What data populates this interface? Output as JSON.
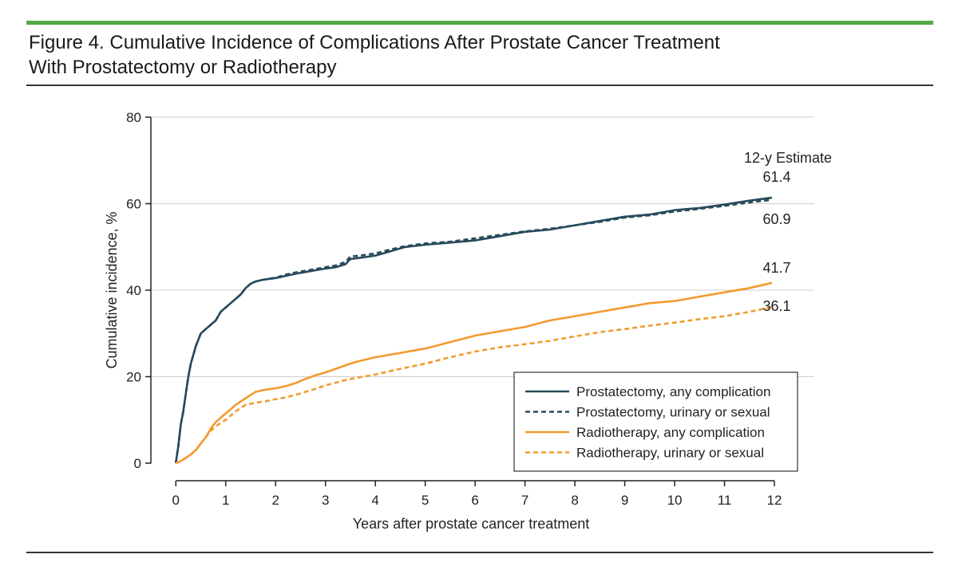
{
  "figure": {
    "title_line1": "Figure 4. Cumulative Incidence of Complications After Prostate Cancer Treatment",
    "title_line2": "With Prostatectomy or Radiotherapy"
  },
  "colors": {
    "prostatectomy": "#274a5a",
    "radiotherapy": "#f29a2e",
    "accent": "#56a845"
  },
  "chart_data": {
    "type": "line",
    "title": "Cumulative Incidence of Complications After Prostate Cancer Treatment With Prostatectomy or Radiotherapy",
    "xlabel": "Years after prostate cancer treatment",
    "ylabel": "Cumulative incidence, %",
    "xlim": [
      -0.5,
      12.8
    ],
    "ylim": [
      0,
      80
    ],
    "xticks": [
      0,
      1,
      2,
      3,
      4,
      5,
      6,
      7,
      8,
      9,
      10,
      11,
      12
    ],
    "yticks": [
      0,
      20,
      40,
      60,
      80
    ],
    "grid": "horizontal",
    "legend_position": "bottom-right",
    "estimate_header": "12-y Estimate",
    "series": [
      {
        "name": "Prostatectomy, any complication",
        "style": "solid",
        "color_key": "prostatectomy",
        "estimate": "61.4",
        "x": [
          0,
          0.05,
          0.1,
          0.15,
          0.2,
          0.25,
          0.3,
          0.35,
          0.4,
          0.5,
          0.6,
          0.7,
          0.8,
          0.9,
          1.0,
          1.1,
          1.2,
          1.3,
          1.4,
          1.5,
          1.6,
          1.7,
          1.8,
          2.0,
          2.2,
          2.4,
          2.6,
          2.8,
          3.0,
          3.2,
          3.4,
          3.5,
          3.7,
          4.0,
          4.3,
          4.6,
          5.0,
          5.5,
          6.0,
          6.5,
          7.0,
          7.5,
          8.0,
          8.5,
          9.0,
          9.5,
          10.0,
          10.5,
          11.0,
          11.5,
          11.95
        ],
        "y": [
          0,
          4,
          9,
          12,
          16,
          20,
          23,
          25,
          27,
          30,
          31,
          32,
          33,
          35,
          36,
          37,
          38,
          39,
          40.5,
          41.5,
          42,
          42.3,
          42.5,
          42.8,
          43.3,
          43.8,
          44.2,
          44.6,
          45,
          45.3,
          46,
          47.2,
          47.5,
          48,
          49,
          50,
          50.5,
          51,
          51.5,
          52.5,
          53.5,
          54,
          55,
          56,
          57,
          57.5,
          58.5,
          59,
          59.8,
          60.7,
          61.4
        ]
      },
      {
        "name": "Prostatectomy, urinary or sexual",
        "style": "dashed",
        "color_key": "prostatectomy",
        "estimate": "60.9",
        "x": [
          0,
          0.05,
          0.1,
          0.15,
          0.2,
          0.25,
          0.3,
          0.35,
          0.4,
          0.5,
          0.6,
          0.7,
          0.8,
          0.9,
          1.0,
          1.1,
          1.2,
          1.3,
          1.4,
          1.5,
          1.6,
          1.7,
          1.8,
          2.0,
          2.2,
          2.4,
          2.6,
          2.8,
          3.0,
          3.2,
          3.4,
          3.5,
          3.7,
          4.0,
          4.3,
          4.6,
          5.0,
          5.5,
          6.0,
          6.5,
          7.0,
          7.5,
          8.0,
          8.5,
          9.0,
          9.5,
          10.0,
          10.5,
          11.0,
          11.5,
          11.95
        ],
        "y": [
          0,
          4,
          9,
          12,
          16,
          20,
          23,
          25,
          27,
          30,
          31,
          32,
          33,
          35,
          36,
          37,
          38,
          39,
          40.5,
          41.5,
          42,
          42.3,
          42.5,
          42.9,
          43.6,
          44.1,
          44.5,
          44.9,
          45.3,
          45.7,
          46.5,
          47.8,
          48,
          48.5,
          49.4,
          50.2,
          50.8,
          51.2,
          52,
          52.8,
          53.6,
          54.2,
          55,
          55.8,
          56.8,
          57.3,
          58.2,
          58.8,
          59.5,
          60.3,
          60.9
        ]
      },
      {
        "name": "Radiotherapy, any complication",
        "style": "solid",
        "color_key": "radiotherapy",
        "estimate": "41.7",
        "x": [
          0,
          0.1,
          0.2,
          0.3,
          0.4,
          0.5,
          0.6,
          0.7,
          0.8,
          0.9,
          1.0,
          1.1,
          1.2,
          1.4,
          1.6,
          1.8,
          2.0,
          2.2,
          2.4,
          2.6,
          2.8,
          3.0,
          3.2,
          3.4,
          3.6,
          4.0,
          4.5,
          5.0,
          5.5,
          6.0,
          6.5,
          7.0,
          7.5,
          8.0,
          8.5,
          9.0,
          9.5,
          10.0,
          10.5,
          11.0,
          11.5,
          11.95
        ],
        "y": [
          0,
          0.5,
          1.2,
          2,
          3,
          4.5,
          6,
          8,
          9.5,
          10.5,
          11.5,
          12.5,
          13.5,
          15,
          16.5,
          17,
          17.3,
          17.8,
          18.5,
          19.5,
          20.3,
          21,
          21.8,
          22.6,
          23.4,
          24.5,
          25.5,
          26.5,
          28,
          29.5,
          30.5,
          31.5,
          33,
          34,
          35,
          36,
          37,
          37.5,
          38.5,
          39.5,
          40.5,
          41.7
        ]
      },
      {
        "name": "Radiotherapy, urinary or sexual",
        "style": "dashed",
        "color_key": "radiotherapy",
        "estimate": "36.1",
        "x": [
          0,
          0.1,
          0.2,
          0.3,
          0.4,
          0.5,
          0.6,
          0.7,
          0.8,
          0.9,
          1.0,
          1.1,
          1.2,
          1.4,
          1.6,
          1.8,
          2.0,
          2.2,
          2.4,
          2.6,
          2.8,
          3.0,
          3.2,
          3.4,
          3.6,
          4.0,
          4.5,
          5.0,
          5.5,
          6.0,
          6.5,
          7.0,
          7.5,
          8.0,
          8.5,
          9.0,
          9.5,
          10.0,
          10.5,
          11.0,
          11.5,
          11.95
        ],
        "y": [
          0,
          0.5,
          1.2,
          2,
          3,
          4.5,
          6,
          7.5,
          8.5,
          9.3,
          10,
          11,
          12,
          13.5,
          14,
          14.3,
          14.8,
          15.2,
          15.8,
          16.5,
          17.2,
          18,
          18.6,
          19.2,
          19.7,
          20.5,
          21.8,
          23,
          24.5,
          25.8,
          26.8,
          27.5,
          28.3,
          29.3,
          30.3,
          31,
          31.8,
          32.5,
          33.3,
          34,
          35,
          36.1
        ]
      }
    ]
  }
}
